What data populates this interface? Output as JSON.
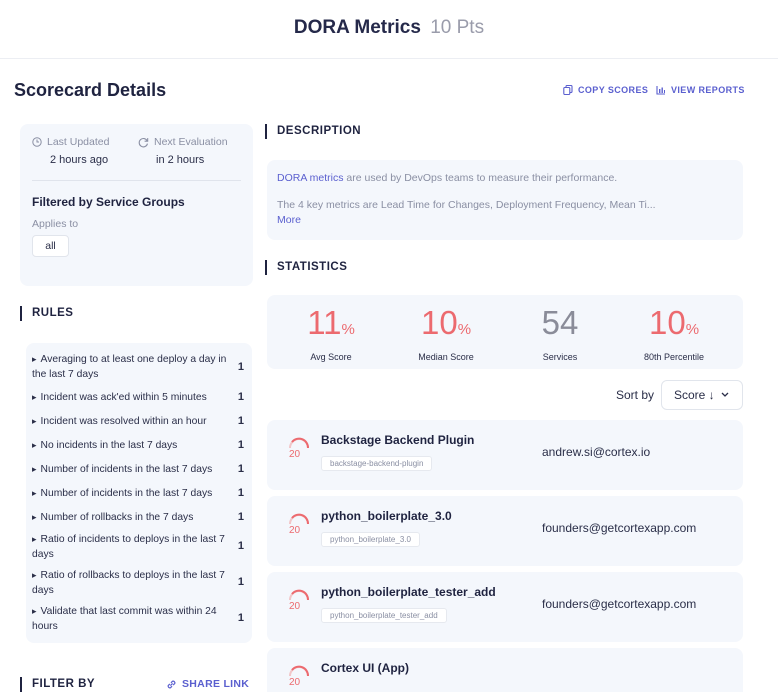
{
  "header": {
    "title": "DORA Metrics",
    "points": "10 Pts"
  },
  "scorecard": {
    "title": "Scorecard Details",
    "copy_scores": "COPY SCORES",
    "view_reports": "VIEW REPORTS"
  },
  "info": {
    "last_updated_label": "Last Updated",
    "last_updated_value": "2 hours ago",
    "next_eval_label": "Next Evaluation",
    "next_eval_value": "in 2 hours",
    "filtered_title": "Filtered by Service Groups",
    "applies_to": "Applies to",
    "chip": "all"
  },
  "rules": {
    "heading": "RULES",
    "items": [
      {
        "label": "Averaging to at least one deploy a day in the last 7 days",
        "count": "1"
      },
      {
        "label": "Incident was ack'ed within 5 minutes",
        "count": "1"
      },
      {
        "label": "Incident was resolved within an hour",
        "count": "1"
      },
      {
        "label": "No incidents in the last 7 days",
        "count": "1"
      },
      {
        "label": "Number of incidents in the last 7 days",
        "count": "1"
      },
      {
        "label": "Number of incidents in the last 7 days",
        "count": "1"
      },
      {
        "label": "Number of rollbacks in the 7 days",
        "count": "1"
      },
      {
        "label": "Ratio of incidents to deploys in the last 7 days",
        "count": "1"
      },
      {
        "label": "Ratio of rollbacks to deploys in the last 7 days",
        "count": "1"
      },
      {
        "label": "Validate that last commit was within 24 hours",
        "count": "1"
      }
    ]
  },
  "filter": {
    "heading": "FILTER BY",
    "share_link": "SHARE LINK"
  },
  "description": {
    "heading": "DESCRIPTION",
    "link_text": "DORA metrics",
    "line1_rest": " are used by DevOps teams to measure their performance.",
    "line2": "The 4 key metrics are Lead Time for Changes, Deployment Frequency, Mean Ti...",
    "more": "More"
  },
  "statistics": {
    "heading": "STATISTICS",
    "items": [
      {
        "value": "11",
        "unit": "%",
        "label": "Avg Score"
      },
      {
        "value": "10",
        "unit": "%",
        "label": "Median Score"
      },
      {
        "value": "54",
        "unit": "",
        "label": "Services"
      },
      {
        "value": "10",
        "unit": "%",
        "label": "80th Percentile"
      }
    ],
    "colors": {
      "red": "#ec6a6f",
      "gray": "#8a8c99"
    }
  },
  "sort": {
    "label": "Sort by",
    "value": "Score ↓"
  },
  "services": [
    {
      "name": "Backstage Backend Plugin",
      "tag": "backstage-backend-plugin",
      "owner": "andrew.si@cortex.io",
      "score": "20"
    },
    {
      "name": "python_boilerplate_3.0",
      "tag": "python_boilerplate_3.0",
      "owner": "founders@getcortexapp.com",
      "score": "20"
    },
    {
      "name": "python_boilerplate_tester_add",
      "tag": "python_boilerplate_tester_add",
      "owner": "founders@getcortexapp.com",
      "score": "20"
    },
    {
      "name": "Cortex UI (App)",
      "tag": "",
      "owner": "",
      "score": "20"
    }
  ]
}
